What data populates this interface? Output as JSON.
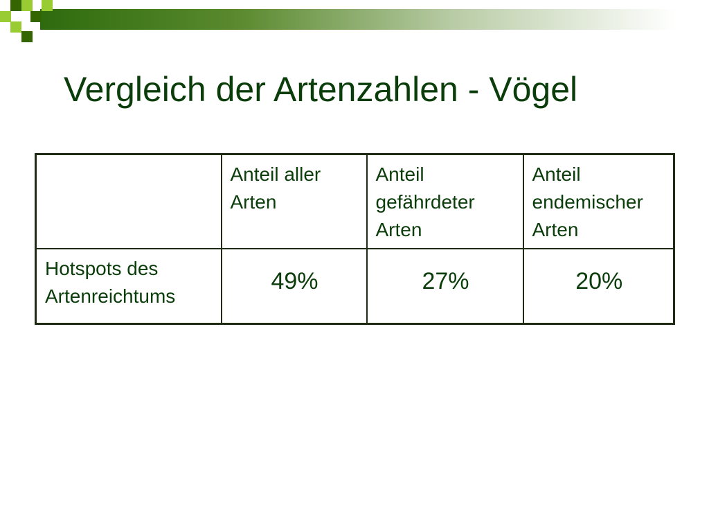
{
  "slide": {
    "title": "Vergleich der Artenzahlen - Vögel"
  },
  "table": {
    "header": [
      "",
      "Anteil aller Arten",
      "Anteil gefährdeter Arten",
      "Anteil endemischer Arten"
    ],
    "rows": [
      {
        "label": "Hotspots des Artenreichtums",
        "values": [
          "49%",
          "27%",
          "20%"
        ]
      }
    ]
  },
  "colors": {
    "title": "#0b3d0b",
    "accent_dark": "#336600",
    "accent_light": "#99cc33",
    "table_border": "#1f2b12"
  }
}
